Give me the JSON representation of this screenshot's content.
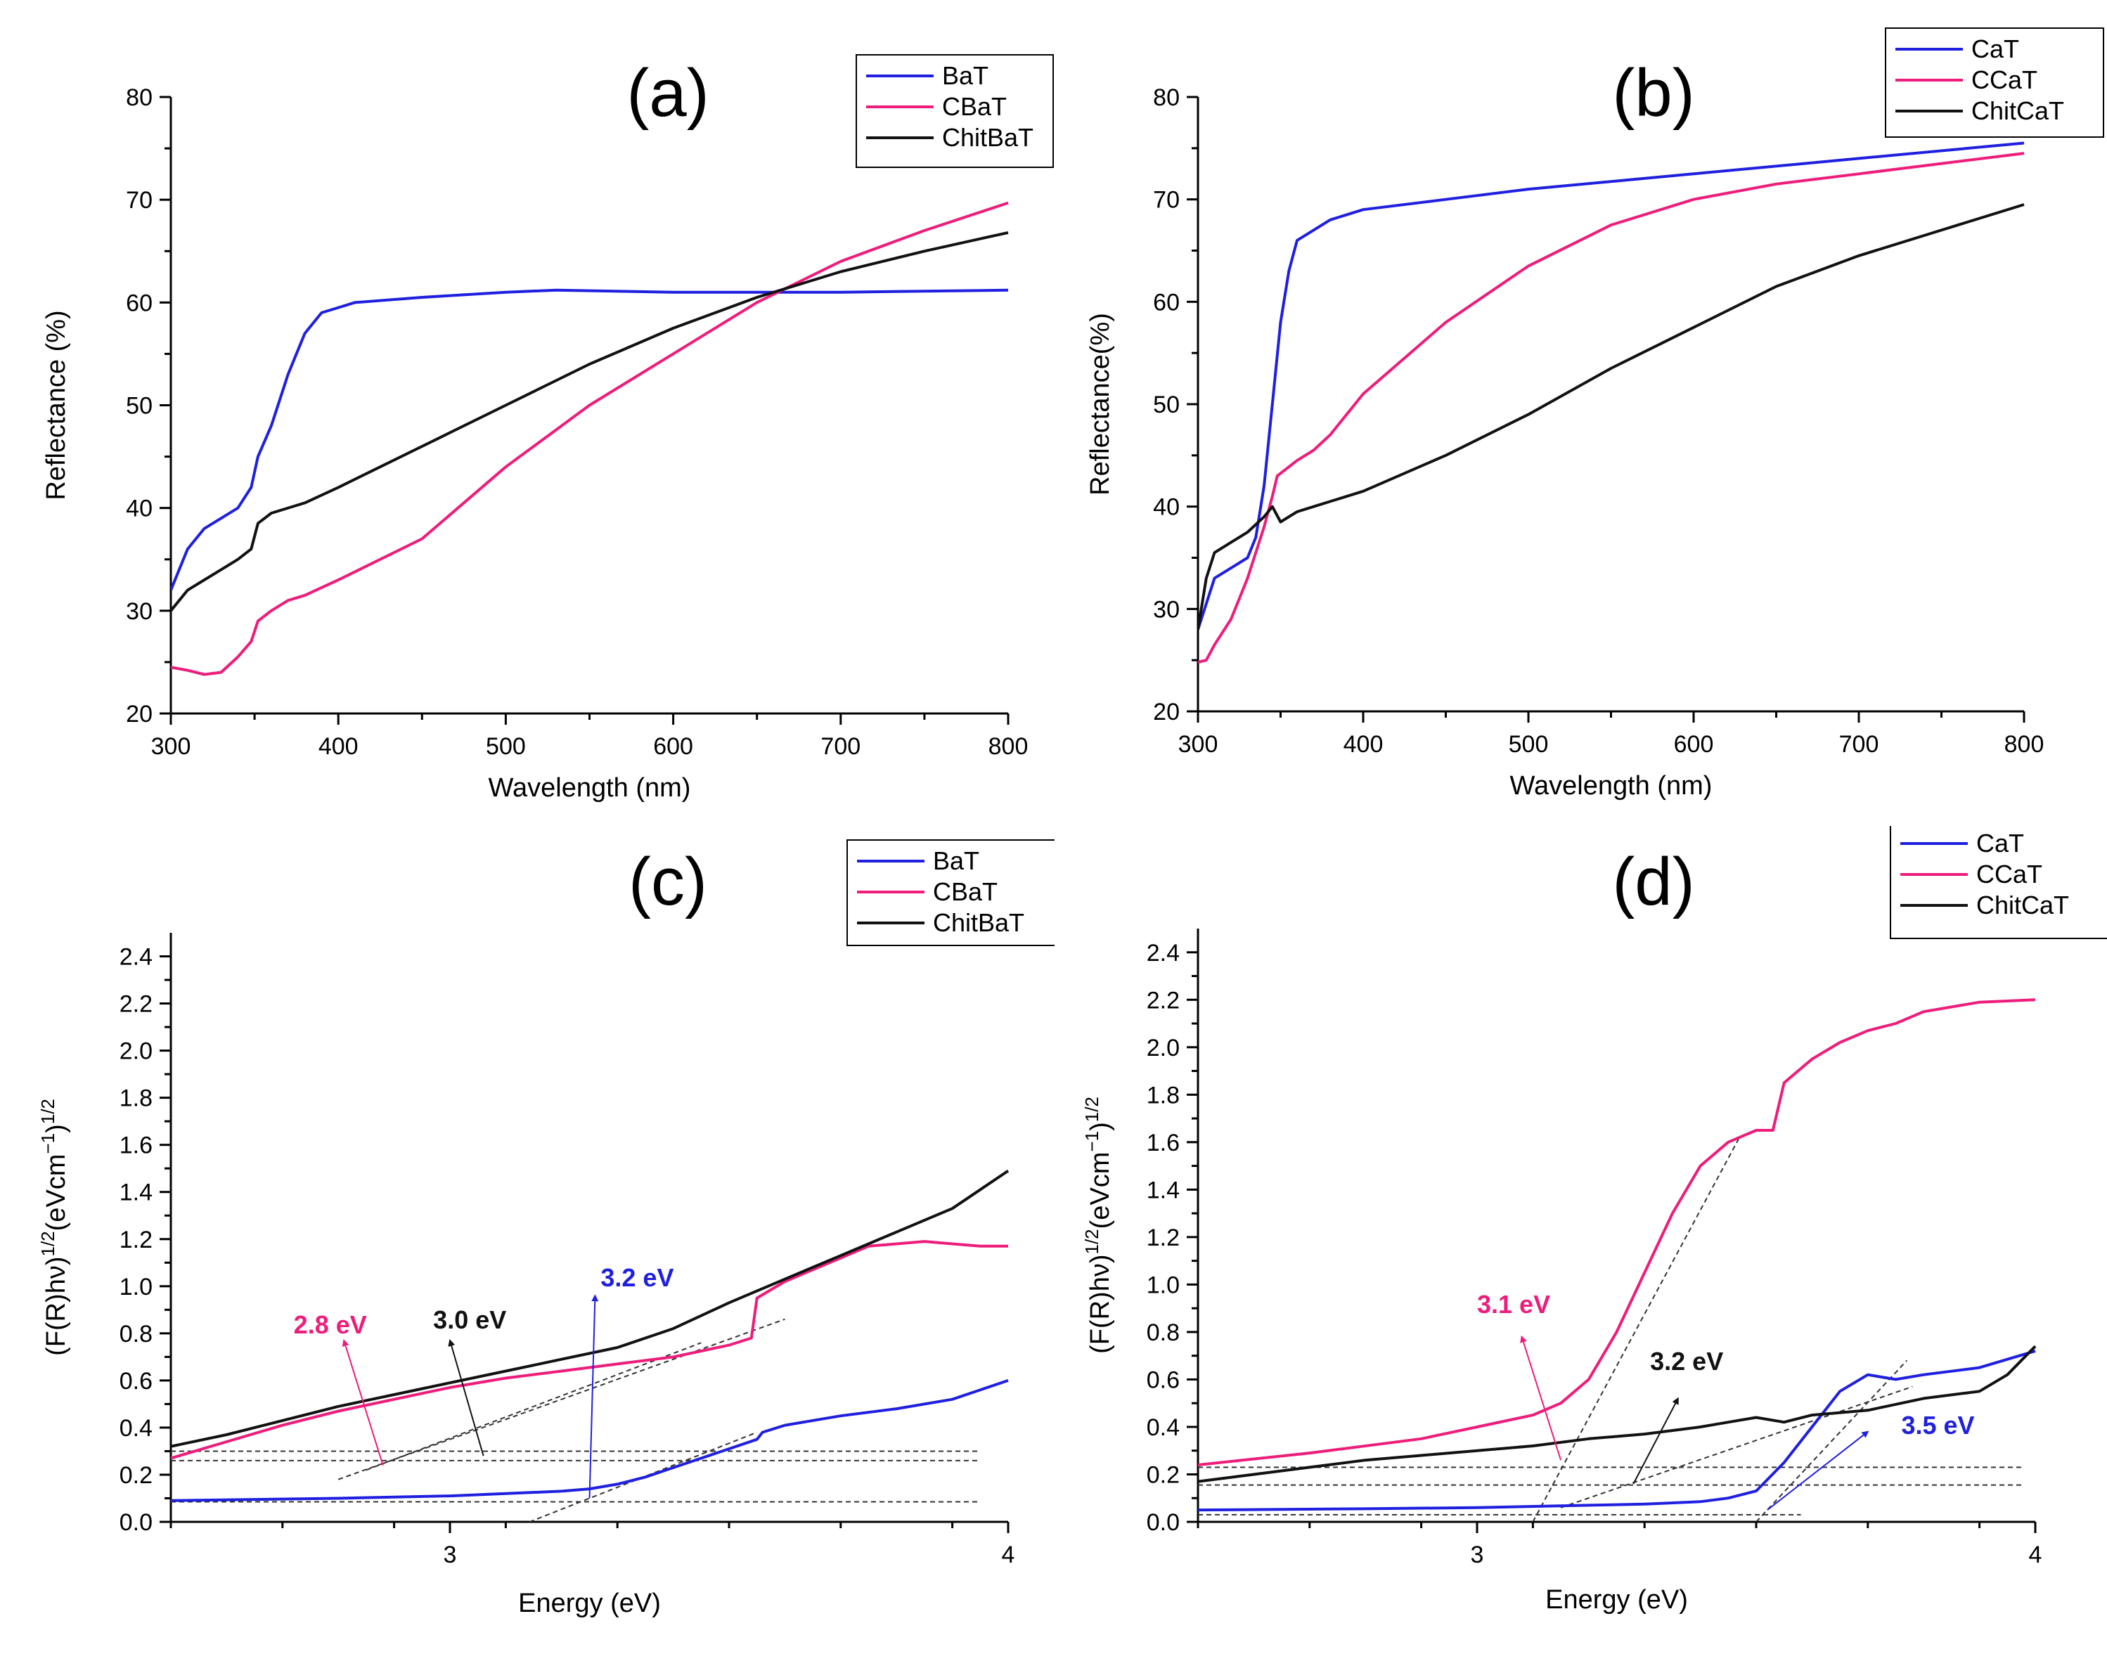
{
  "chart_data": [
    {
      "id": "a",
      "type": "line",
      "title": "(a)",
      "xlabel": "Wavelength (nm)",
      "ylabel": "Reflectance (%)",
      "xlim": [
        300,
        800
      ],
      "ylim": [
        20,
        80
      ],
      "xticks": [
        300,
        400,
        500,
        600,
        700,
        800
      ],
      "yticks": [
        20,
        30,
        40,
        50,
        60,
        70,
        80
      ],
      "xtick_labels": [
        "300",
        "400",
        "500",
        "600",
        "700",
        "800"
      ],
      "ytick_labels": [
        "20",
        "30",
        "40",
        "50",
        "60",
        "70",
        "80"
      ],
      "legend": "top-right",
      "series": [
        {
          "name": "BaT",
          "color": "#1f1fe0",
          "x": [
            300,
            310,
            320,
            330,
            340,
            348,
            352,
            360,
            370,
            380,
            390,
            400,
            410,
            450,
            500,
            530,
            600,
            700,
            800
          ],
          "y": [
            32,
            36,
            38,
            39,
            40,
            42,
            45,
            48,
            53,
            57,
            59,
            59.5,
            60,
            60.5,
            61,
            61.2,
            61,
            61,
            61.2
          ]
        },
        {
          "name": "CBaT",
          "color": "#ee1c7a",
          "x": [
            300,
            310,
            320,
            330,
            340,
            348,
            352,
            360,
            370,
            380,
            400,
            450,
            500,
            550,
            600,
            650,
            700,
            750,
            800
          ],
          "y": [
            24.5,
            24.2,
            23.8,
            24,
            25.5,
            27,
            29,
            30,
            31,
            31.5,
            33,
            37,
            44,
            50,
            55,
            60,
            64,
            67,
            69.7
          ]
        },
        {
          "name": "ChitBaT",
          "color": "#111111",
          "x": [
            300,
            310,
            320,
            330,
            340,
            348,
            352,
            360,
            380,
            400,
            450,
            500,
            550,
            600,
            650,
            700,
            750,
            800
          ],
          "y": [
            30,
            32,
            33,
            34,
            35,
            36,
            38.5,
            39.5,
            40.5,
            42,
            46,
            50,
            54,
            57.5,
            60.5,
            63,
            65,
            66.8
          ]
        }
      ],
      "annotations": []
    },
    {
      "id": "b",
      "type": "line",
      "title": "(b)",
      "xlabel": "Wavelength (nm)",
      "ylabel": "Reflectance(%)",
      "xlim": [
        300,
        800
      ],
      "ylim": [
        20,
        80
      ],
      "xticks": [
        300,
        400,
        500,
        600,
        700,
        800
      ],
      "yticks": [
        20,
        30,
        40,
        50,
        60,
        70,
        80
      ],
      "xtick_labels": [
        "300",
        "400",
        "500",
        "600",
        "700",
        "800"
      ],
      "ytick_labels": [
        "20",
        "30",
        "40",
        "50",
        "60",
        "70",
        "80"
      ],
      "legend": "top-right",
      "series": [
        {
          "name": "CaT",
          "color": "#1f1fe0",
          "x": [
            300,
            310,
            320,
            330,
            335,
            340,
            345,
            350,
            355,
            360,
            370,
            380,
            400,
            450,
            500,
            600,
            700,
            800
          ],
          "y": [
            28,
            33,
            34,
            35,
            37,
            42,
            50,
            58,
            63,
            66,
            67,
            68,
            69,
            70,
            71,
            72.5,
            74,
            75.5
          ]
        },
        {
          "name": "CCaT",
          "color": "#ee1c7a",
          "x": [
            300,
            305,
            310,
            320,
            330,
            340,
            345,
            348,
            352,
            360,
            370,
            380,
            400,
            450,
            500,
            550,
            600,
            650,
            700,
            800
          ],
          "y": [
            24.8,
            25,
            26.5,
            29,
            33,
            38,
            41,
            43,
            43.5,
            44.5,
            45.5,
            47,
            51,
            58,
            63.5,
            67.5,
            70,
            71.5,
            72.5,
            74.5
          ]
        },
        {
          "name": "ChitCaT",
          "color": "#111111",
          "x": [
            300,
            305,
            310,
            320,
            330,
            340,
            345,
            350,
            355,
            360,
            370,
            380,
            400,
            450,
            500,
            550,
            600,
            650,
            700,
            750,
            800
          ],
          "y": [
            28,
            33,
            35.5,
            36.5,
            37.5,
            39,
            40,
            38.5,
            39,
            39.5,
            40,
            40.5,
            41.5,
            45,
            49,
            53.5,
            57.5,
            61.5,
            64.5,
            67,
            69.5
          ]
        }
      ],
      "annotations": []
    },
    {
      "id": "c",
      "type": "line",
      "title": "(c)",
      "xlabel": "Energy (eV)",
      "ylabel": "(F(R)hν)1/2(eVcm−1)1/2",
      "ylabel_parts": {
        "a": "(F(R)hν)",
        "b": "1/2",
        "c": "(eVcm",
        "d": "−1",
        "e": ")",
        "f": "1/2"
      },
      "xlim": [
        2.5,
        4.0
      ],
      "ylim": [
        0,
        2.5
      ],
      "xticks": [
        3,
        4
      ],
      "yticks": [
        0.0,
        0.2,
        0.4,
        0.6,
        0.8,
        1.0,
        1.2,
        1.4,
        1.6,
        1.8,
        2.0,
        2.2,
        2.4
      ],
      "xtick_labels": [
        "3",
        "4"
      ],
      "ytick_labels": [
        "0.0",
        "0.2",
        "0.4",
        "0.6",
        "0.8",
        "1.0",
        "1.2",
        "1.4",
        "1.6",
        "1.8",
        "2.0",
        "2.2",
        "2.4"
      ],
      "legend": "top-right",
      "series": [
        {
          "name": "BaT",
          "color": "#1f1fe0",
          "x": [
            2.5,
            2.8,
            3.0,
            3.1,
            3.2,
            3.25,
            3.3,
            3.35,
            3.4,
            3.45,
            3.5,
            3.55,
            3.56,
            3.6,
            3.7,
            3.8,
            3.9,
            4.0
          ],
          "y": [
            0.09,
            0.1,
            0.11,
            0.12,
            0.13,
            0.14,
            0.16,
            0.19,
            0.23,
            0.27,
            0.31,
            0.35,
            0.38,
            0.41,
            0.45,
            0.48,
            0.52,
            0.6
          ]
        },
        {
          "name": "CBaT",
          "color": "#ee1c7a",
          "x": [
            2.5,
            2.6,
            2.7,
            2.8,
            2.9,
            3.0,
            3.1,
            3.2,
            3.3,
            3.4,
            3.5,
            3.54,
            3.55,
            3.6,
            3.7,
            3.75,
            3.8,
            3.85,
            3.9,
            3.95,
            4.0
          ],
          "y": [
            0.27,
            0.34,
            0.41,
            0.47,
            0.52,
            0.57,
            0.61,
            0.64,
            0.67,
            0.7,
            0.75,
            0.78,
            0.95,
            1.02,
            1.12,
            1.17,
            1.18,
            1.19,
            1.18,
            1.17,
            1.17
          ]
        },
        {
          "name": "ChitBaT",
          "color": "#111111",
          "x": [
            2.5,
            2.6,
            2.7,
            2.8,
            2.9,
            3.0,
            3.1,
            3.2,
            3.3,
            3.4,
            3.5,
            3.6,
            3.7,
            3.8,
            3.9,
            4.0
          ],
          "y": [
            0.32,
            0.37,
            0.43,
            0.49,
            0.54,
            0.59,
            0.64,
            0.69,
            0.74,
            0.82,
            0.93,
            1.03,
            1.13,
            1.23,
            1.33,
            1.49
          ]
        }
      ],
      "fit_lines": [
        {
          "x1": 2.8,
          "y1": 0.18,
          "x2": 3.6,
          "y2": 0.86
        },
        {
          "x1": 2.85,
          "y1": 0.22,
          "x2": 3.45,
          "y2": 0.76
        },
        {
          "x1": 3.1,
          "y1": -0.04,
          "x2": 3.55,
          "y2": 0.38
        },
        {
          "x1": 2.5,
          "y1": 0.3,
          "x2": 3.95,
          "y2": 0.3
        },
        {
          "x1": 2.5,
          "y1": 0.26,
          "x2": 3.95,
          "y2": 0.26
        },
        {
          "x1": 2.5,
          "y1": 0.085,
          "x2": 3.95,
          "y2": 0.085
        }
      ],
      "annotations": [
        {
          "text": "2.8 eV",
          "color": "#ee1c7a",
          "tx": 2.72,
          "ty": 0.8,
          "ax1": 2.88,
          "ay1": 0.24,
          "ax2": 2.81,
          "ay2": 0.77
        },
        {
          "text": "3.0 eV",
          "color": "#111111",
          "tx": 2.97,
          "ty": 0.82,
          "ax1": 3.06,
          "ay1": 0.28,
          "ax2": 3.0,
          "ay2": 0.77
        },
        {
          "text": "3.2 eV",
          "color": "#1f1fe0",
          "tx": 3.27,
          "ty": 1.0,
          "ax1": 3.25,
          "ay1": 0.1,
          "ax2": 3.26,
          "ay2": 0.96
        }
      ]
    },
    {
      "id": "d",
      "type": "line",
      "title": "(d)",
      "xlabel": "Energy (eV)",
      "ylabel": "(F(R)hν)1/2(eVcm−1)1/2",
      "ylabel_parts": {
        "a": "(F(R)hν)",
        "b": "1/2",
        "c": "(eVcm",
        "d": "−1",
        "e": ")",
        "f": "1/2"
      },
      "xlim": [
        2.5,
        4.0
      ],
      "ylim": [
        0,
        2.5
      ],
      "xticks": [
        3,
        4
      ],
      "yticks": [
        0.0,
        0.2,
        0.4,
        0.6,
        0.8,
        1.0,
        1.2,
        1.4,
        1.6,
        1.8,
        2.0,
        2.2,
        2.4
      ],
      "xtick_labels": [
        "3",
        "4"
      ],
      "ytick_labels": [
        "0.0",
        "0.2",
        "0.4",
        "0.6",
        "0.8",
        "1.0",
        "1.2",
        "1.4",
        "1.6",
        "1.8",
        "2.0",
        "2.2",
        "2.4"
      ],
      "legend": "top-right",
      "series": [
        {
          "name": "CaT",
          "color": "#1f1fe0",
          "x": [
            2.5,
            2.8,
            3.0,
            3.2,
            3.3,
            3.4,
            3.45,
            3.5,
            3.55,
            3.6,
            3.65,
            3.7,
            3.75,
            3.8,
            3.9,
            4.0
          ],
          "y": [
            0.05,
            0.055,
            0.06,
            0.07,
            0.075,
            0.085,
            0.1,
            0.13,
            0.25,
            0.4,
            0.55,
            0.62,
            0.6,
            0.62,
            0.65,
            0.72
          ]
        },
        {
          "name": "CCaT",
          "color": "#ee1c7a",
          "x": [
            2.5,
            2.7,
            2.9,
            3.0,
            3.1,
            3.15,
            3.2,
            3.25,
            3.3,
            3.35,
            3.4,
            3.45,
            3.5,
            3.53,
            3.55,
            3.6,
            3.65,
            3.7,
            3.75,
            3.8,
            3.9,
            4.0
          ],
          "y": [
            0.24,
            0.29,
            0.35,
            0.4,
            0.45,
            0.5,
            0.6,
            0.8,
            1.05,
            1.3,
            1.5,
            1.6,
            1.65,
            1.65,
            1.85,
            1.95,
            2.02,
            2.07,
            2.1,
            2.15,
            2.19,
            2.2
          ]
        },
        {
          "name": "ChitCaT",
          "color": "#111111",
          "x": [
            2.5,
            2.6,
            2.7,
            2.8,
            2.9,
            3.0,
            3.1,
            3.2,
            3.3,
            3.4,
            3.45,
            3.5,
            3.55,
            3.6,
            3.7,
            3.8,
            3.9,
            3.95,
            4.0
          ],
          "y": [
            0.17,
            0.2,
            0.23,
            0.26,
            0.28,
            0.3,
            0.32,
            0.35,
            0.37,
            0.4,
            0.42,
            0.44,
            0.42,
            0.45,
            0.47,
            0.52,
            0.55,
            0.62,
            0.74
          ]
        },
        {
          "name": "",
          "color": "#1f1fe0",
          "x": [
            3.5,
            3.55,
            3.6,
            3.65,
            3.7
          ],
          "y": [
            0.13,
            0.25,
            0.4,
            0.55,
            0.62
          ],
          "hidden": true
        }
      ],
      "fit_lines": [
        {
          "x1": 3.1,
          "y1": 0.0,
          "x2": 3.47,
          "y2": 1.62
        },
        {
          "x1": 3.15,
          "y1": 0.06,
          "x2": 3.78,
          "y2": 0.57
        },
        {
          "x1": 3.5,
          "y1": 0.0,
          "x2": 3.77,
          "y2": 0.68
        },
        {
          "x1": 2.5,
          "y1": 0.23,
          "x2": 3.98,
          "y2": 0.23
        },
        {
          "x1": 2.5,
          "y1": 0.155,
          "x2": 3.98,
          "y2": 0.155
        },
        {
          "x1": 2.5,
          "y1": 0.03,
          "x2": 3.58,
          "y2": 0.03
        }
      ],
      "annotations": [
        {
          "text": "3.1 eV",
          "color": "#ee1c7a",
          "tx": 3.0,
          "ty": 0.88,
          "ax1": 3.15,
          "ay1": 0.26,
          "ax2": 3.08,
          "ay2": 0.78
        },
        {
          "text": "3.2 eV",
          "color": "#111111",
          "tx": 3.31,
          "ty": 0.64,
          "ax1": 3.28,
          "ay1": 0.16,
          "ax2": 3.36,
          "ay2": 0.52
        },
        {
          "text": "3.5 eV",
          "color": "#1f1fe0",
          "tx": 3.76,
          "ty": 0.37,
          "ax1": 3.52,
          "ay1": 0.05,
          "ax2": 3.7,
          "ay2": 0.38
        }
      ]
    }
  ]
}
